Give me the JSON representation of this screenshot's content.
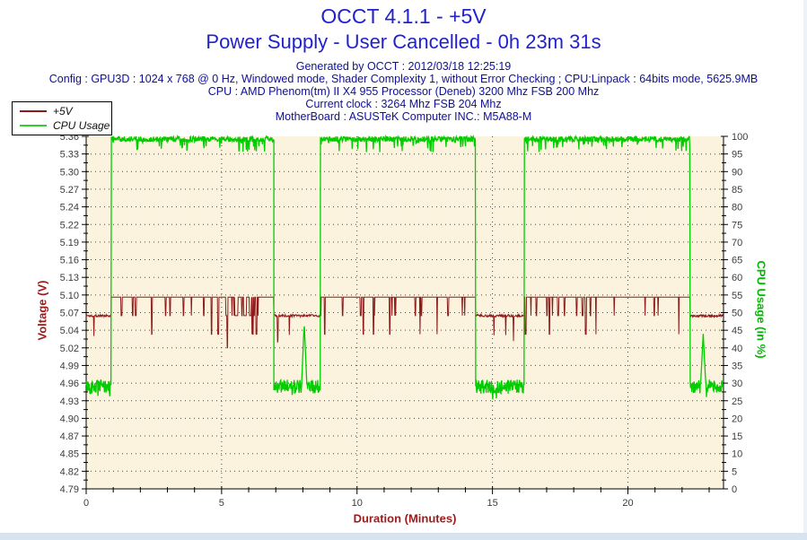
{
  "header": {
    "title": "OCCT 4.1.1 - +5V",
    "subtitle": "Power Supply - User Cancelled - 0h 23m 31s",
    "info_lines": [
      "Generated by OCCT : 2012/03/18 12:25:19",
      "Config : GPU3D : 1024 x 768 @ 0 Hz, Windowed mode, Shader Complexity 1, without Error Checking ; CPU:Linpack : 64bits mode, 5625.9MB",
      "CPU : AMD Phenom(tm) II X4 955 Processor (Deneb) 3200 Mhz FSB 200 Mhz",
      "Current clock : 3264 Mhz FSB 204 Mhz",
      "MotherBoard : ASUSTeK Computer INC.: M5A88-M"
    ]
  },
  "legend": {
    "items": [
      {
        "label": "+5V",
        "color": "#8E1A1A"
      },
      {
        "label": "CPU Usage",
        "color": "#33CC33"
      }
    ]
  },
  "chart_data": {
    "type": "line",
    "title": "OCCT 4.1.1 - +5V",
    "xlabel": "Duration (Minutes)",
    "x_max": 23.53,
    "x_major_ticks": [
      0,
      5,
      10,
      15,
      20
    ],
    "x_minor_step": 1,
    "grid": {
      "horizontal": true,
      "vertical_at_major": true,
      "dot_color": "#4a4a4a"
    },
    "plot_bg": "#FBF3DE",
    "axes": {
      "left": {
        "label": "Voltage (V)",
        "label_color": "#9B1B1B",
        "min": 4.79,
        "max": 5.36,
        "tick_labels": [
          "5.36",
          "5.33",
          "5.30",
          "5.27",
          "5.24",
          "5.22",
          "5.19",
          "5.16",
          "5.13",
          "5.10",
          "5.07",
          "5.04",
          "5.02",
          "4.99",
          "4.96",
          "4.93",
          "4.90",
          "4.87",
          "4.85",
          "4.82",
          "4.79"
        ]
      },
      "right": {
        "label": "CPU Usage (in %)",
        "label_color": "#00BB00",
        "min": 0,
        "max": 100,
        "tick_step": 5
      }
    },
    "series": [
      {
        "name": "+5V",
        "axis": "left",
        "color": "#8E1A1A",
        "idle_level": 5.07,
        "load_level": 5.1,
        "dip_levels": [
          5.07,
          5.04,
          5.02
        ],
        "burst_dips": [
          [
            5.45,
            6.4
          ]
        ],
        "segments": [
          {
            "t0": 0,
            "t1": 0.93,
            "level": 5.07,
            "mode": "idle"
          },
          {
            "t0": 0.93,
            "t1": 6.93,
            "level": 5.1,
            "mode": "load"
          },
          {
            "t0": 6.93,
            "t1": 8.65,
            "level": 5.07,
            "mode": "idle"
          },
          {
            "t0": 8.65,
            "t1": 14.38,
            "level": 5.1,
            "mode": "load"
          },
          {
            "t0": 14.38,
            "t1": 16.18,
            "level": 5.07,
            "mode": "idle"
          },
          {
            "t0": 16.18,
            "t1": 22.3,
            "level": 5.1,
            "mode": "load"
          },
          {
            "t0": 22.3,
            "t1": 23.53,
            "level": 5.07,
            "mode": "idle"
          }
        ]
      },
      {
        "name": "CPU Usage",
        "axis": "right",
        "color": "#00CC00",
        "idle_level": 29,
        "load_level": 100,
        "spikes": [
          {
            "t": 8.05,
            "value": 47
          },
          {
            "t": 22.78,
            "value": 44
          }
        ],
        "segments": [
          {
            "t0": 0,
            "t1": 0.93,
            "level": 29,
            "mode": "idle"
          },
          {
            "t0": 0.93,
            "t1": 6.93,
            "level": 100,
            "mode": "load"
          },
          {
            "t0": 6.93,
            "t1": 8.65,
            "level": 29,
            "mode": "idle"
          },
          {
            "t0": 8.65,
            "t1": 14.38,
            "level": 100,
            "mode": "load"
          },
          {
            "t0": 14.38,
            "t1": 16.18,
            "level": 29,
            "mode": "idle"
          },
          {
            "t0": 16.18,
            "t1": 22.3,
            "level": 100,
            "mode": "load"
          },
          {
            "t0": 22.3,
            "t1": 23.53,
            "level": 29,
            "mode": "idle"
          }
        ]
      }
    ]
  }
}
